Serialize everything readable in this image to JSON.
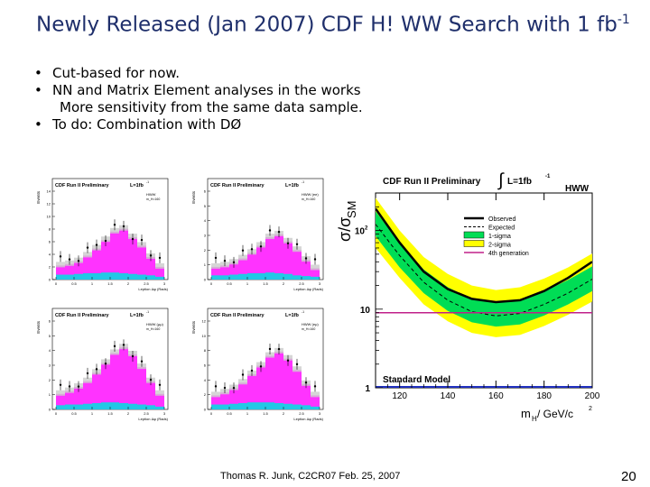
{
  "slide": {
    "title_main": "Newly Released (Jan 2007) CDF H! WW Search with 1 fb",
    "title_sup": "-1",
    "bullets": [
      "Cut-based for now.",
      "NN and Matrix Element analyses in the works",
      "More sensitivity from the same data sample.",
      "To do: Combination with DØ"
    ],
    "footer": "Thomas R. Junk, C2CR07 Feb. 25, 2007",
    "page_number": "20"
  },
  "mini_plots": {
    "header": "CDF Run II Preliminary",
    "lumi": "L=1fb",
    "lumi_sup": "-1",
    "ylabel": "Events",
    "xlabel": "Leption Δφ (Rads)",
    "x_ticks": [
      "0",
      "0.5",
      "1",
      "1.5",
      "2",
      "2.5",
      "3"
    ],
    "panels": [
      {
        "tag": "HWW",
        "mass": "m_H=160",
        "y_ticks": [
          "0",
          "2",
          "4",
          "6",
          "8",
          "10",
          "12",
          "14"
        ]
      },
      {
        "tag": "HWW (ee)",
        "mass": "m_H=160",
        "y_ticks": [
          "0",
          "1",
          "2",
          "3",
          "4",
          "5",
          "6"
        ]
      },
      {
        "tag": "HWW (μμ)",
        "mass": "m_H=160",
        "y_ticks": [
          "0",
          "1",
          "2",
          "3",
          "4",
          "5",
          "6"
        ]
      },
      {
        "tag": "HWW (eμ)",
        "mass": "m_H=160",
        "y_ticks": [
          "0",
          "2",
          "4",
          "6",
          "8",
          "10",
          "12"
        ]
      }
    ]
  },
  "chart_data": {
    "type": "line",
    "title": "CDF Run II Preliminary",
    "lumi_label": "L=1fb",
    "lumi_sup": "-1",
    "channel_label": "HWW",
    "ylabel": "σ/σ",
    "ylabel_sub": "SM",
    "xlabel": "m",
    "xlabel_sub": "H",
    "xlabel_units": " / GeV/c",
    "xlabel_sup": "2",
    "x_ticks": [
      120,
      140,
      160,
      180,
      200
    ],
    "y_ticks": [
      "1",
      "10",
      "10"
    ],
    "y_tick_sup": "2",
    "xlim": [
      110,
      200
    ],
    "ylim": [
      1,
      300
    ],
    "log_y": true,
    "grid": false,
    "legend_position": "top-right",
    "x": [
      110,
      120,
      130,
      140,
      150,
      160,
      170,
      180,
      190,
      200
    ],
    "series": [
      {
        "name": "Observed",
        "color": "#000000",
        "values": [
          190,
          70,
          30,
          18,
          13.5,
          12.3,
          13,
          17,
          25,
          40
        ]
      },
      {
        "name": "Expected",
        "color": "#000000",
        "style": "dashed",
        "values": [
          120,
          48,
          22,
          13,
          9.3,
          8.2,
          8.8,
          11.5,
          16,
          24
        ]
      },
      {
        "name": "1-sigma",
        "color": "#00dd55",
        "band_low": [
          85,
          34,
          16,
          9.5,
          6.8,
          6.0,
          6.4,
          8.3,
          11.5,
          17
        ],
        "band_high": [
          175,
          70,
          32,
          19,
          13.5,
          12,
          12.8,
          16.8,
          23.5,
          35
        ]
      },
      {
        "name": "2-sigma",
        "color": "#ffff00",
        "band_low": [
          60,
          25,
          11.5,
          7.0,
          5.0,
          4.4,
          4.7,
          6.1,
          8.5,
          12.5
        ],
        "band_high": [
          260,
          100,
          46,
          28,
          20,
          17.5,
          19,
          24.5,
          34,
          51
        ]
      },
      {
        "name": "4th generation",
        "color": "#c0208a",
        "values": [
          9,
          9,
          9,
          9,
          9,
          9,
          9,
          9,
          9,
          9
        ]
      }
    ],
    "legend": [
      "Observed",
      "Expected",
      "1-sigma",
      "2-sigma",
      "4th generation"
    ],
    "annotations": [
      {
        "text": "Standard Model",
        "y": 1
      }
    ]
  }
}
